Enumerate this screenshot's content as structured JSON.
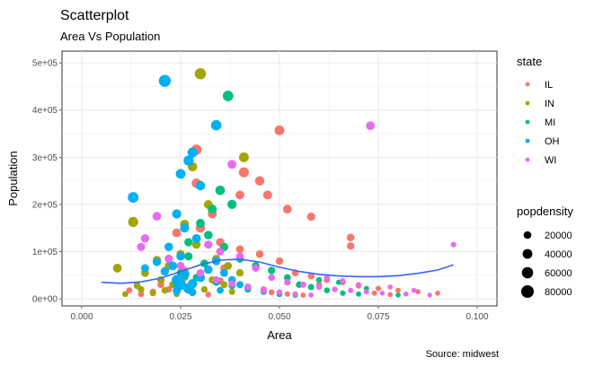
{
  "chart_data": {
    "type": "scatter",
    "title": "Scatterplot",
    "subtitle": "Area Vs Population",
    "xlabel": "Area",
    "ylabel": "Population",
    "caption": "Source: midwest",
    "xlim": [
      -0.005,
      0.105
    ],
    "ylim": [
      -15000,
      525000
    ],
    "xticks": [
      {
        "value": 0.0,
        "label": "0.000"
      },
      {
        "value": 0.025,
        "label": "0.025"
      },
      {
        "value": 0.05,
        "label": "0.050"
      },
      {
        "value": 0.075,
        "label": "0.075"
      },
      {
        "value": 0.1,
        "label": "0.100"
      }
    ],
    "yticks": [
      {
        "value": 0,
        "label": "0e+00"
      },
      {
        "value": 100000,
        "label": "1e+05"
      },
      {
        "value": 200000,
        "label": "2e+05"
      },
      {
        "value": 300000,
        "label": "3e+05"
      },
      {
        "value": 400000,
        "label": "4e+05"
      },
      {
        "value": 500000,
        "label": "5e+05"
      }
    ],
    "grid": true,
    "legend": {
      "placement": "right",
      "color_title": "state",
      "color_entries": [
        {
          "name": "IL",
          "color": "#F8766D"
        },
        {
          "name": "IN",
          "color": "#A3A500"
        },
        {
          "name": "MI",
          "color": "#00BF7D"
        },
        {
          "name": "OH",
          "color": "#00B0F6"
        },
        {
          "name": "WI",
          "color": "#E76BF3"
        }
      ],
      "size_title": "popdensity",
      "size_entries": [
        {
          "label": "20000",
          "value": 20000
        },
        {
          "label": "40000",
          "value": 40000
        },
        {
          "label": "60000",
          "value": 60000
        },
        {
          "label": "80000",
          "value": 80000
        }
      ]
    },
    "series": [
      {
        "name": "IL",
        "points": [
          [
            0.029,
            316000,
            48000
          ],
          [
            0.041,
            268000,
            44000
          ],
          [
            0.05,
            357000,
            40000
          ],
          [
            0.045,
            250000,
            36000
          ],
          [
            0.047,
            220000,
            32000
          ],
          [
            0.052,
            190000,
            30000
          ],
          [
            0.058,
            174000,
            24000
          ],
          [
            0.068,
            130000,
            20000
          ],
          [
            0.068,
            112000,
            18000
          ],
          [
            0.029,
            245000,
            38000
          ],
          [
            0.04,
            220000,
            30000
          ],
          [
            0.033,
            180000,
            32000
          ],
          [
            0.03,
            150000,
            34000
          ],
          [
            0.024,
            140000,
            30000
          ],
          [
            0.035,
            120000,
            26000
          ],
          [
            0.04,
            105000,
            22000
          ],
          [
            0.045,
            95000,
            20000
          ],
          [
            0.05,
            80000,
            18000
          ],
          [
            0.054,
            55000,
            14000
          ],
          [
            0.058,
            48000,
            12000
          ],
          [
            0.062,
            40000,
            10000
          ],
          [
            0.066,
            35000,
            8000
          ],
          [
            0.07,
            28000,
            8000
          ],
          [
            0.075,
            22000,
            6000
          ],
          [
            0.08,
            18000,
            5000
          ],
          [
            0.085,
            15000,
            5000
          ],
          [
            0.09,
            12000,
            4000
          ],
          [
            0.02,
            30000,
            14000
          ],
          [
            0.022,
            20000,
            12000
          ],
          [
            0.018,
            15000,
            10000
          ],
          [
            0.015,
            10000,
            8000
          ],
          [
            0.026,
            60000,
            20000
          ],
          [
            0.03,
            45000,
            18000
          ],
          [
            0.035,
            38000,
            16000
          ],
          [
            0.038,
            30000,
            14000
          ],
          [
            0.042,
            25000,
            12000
          ],
          [
            0.046,
            20000,
            10000
          ],
          [
            0.048,
            14000,
            8000
          ],
          [
            0.052,
            10000,
            6000
          ],
          [
            0.056,
            8000,
            5000
          ],
          [
            0.028,
            12000,
            9000
          ],
          [
            0.032,
            9000,
            8000
          ],
          [
            0.012,
            18000,
            9000
          ],
          [
            0.036,
            65000,
            20000
          ],
          [
            0.06,
            30000,
            8000
          ],
          [
            0.064,
            20000,
            6000
          ],
          [
            0.074,
            12000,
            5000
          ],
          [
            0.078,
            9000,
            4000
          ]
        ]
      },
      {
        "name": "IN",
        "points": [
          [
            0.03,
            477000,
            60000
          ],
          [
            0.013,
            163000,
            44000
          ],
          [
            0.009,
            65000,
            30000
          ],
          [
            0.041,
            300000,
            40000
          ],
          [
            0.028,
            280000,
            36000
          ],
          [
            0.032,
            200000,
            30000
          ],
          [
            0.026,
            158000,
            32000
          ],
          [
            0.019,
            82000,
            26000
          ],
          [
            0.016,
            55000,
            22000
          ],
          [
            0.022,
            70000,
            24000
          ],
          [
            0.025,
            95000,
            24000
          ],
          [
            0.029,
            115000,
            26000
          ],
          [
            0.034,
            85000,
            22000
          ],
          [
            0.037,
            70000,
            20000
          ],
          [
            0.04,
            55000,
            18000
          ],
          [
            0.02,
            40000,
            18000
          ],
          [
            0.023,
            30000,
            16000
          ],
          [
            0.027,
            25000,
            14000
          ],
          [
            0.031,
            20000,
            12000
          ],
          [
            0.015,
            20000,
            12000
          ],
          [
            0.018,
            12000,
            10000
          ],
          [
            0.011,
            10000,
            8000
          ],
          [
            0.033,
            40000,
            16000
          ],
          [
            0.036,
            30000,
            14000
          ],
          [
            0.024,
            10000,
            9000
          ],
          [
            0.038,
            15000,
            10000
          ],
          [
            0.021,
            18000,
            12000
          ],
          [
            0.026,
            45000,
            18000
          ],
          [
            0.014,
            28000,
            14000
          ],
          [
            0.042,
            22000,
            12000
          ]
        ]
      },
      {
        "name": "MI",
        "points": [
          [
            0.037,
            430000,
            50000
          ],
          [
            0.035,
            230000,
            38000
          ],
          [
            0.038,
            200000,
            34000
          ],
          [
            0.033,
            190000,
            32000
          ],
          [
            0.03,
            160000,
            30000
          ],
          [
            0.032,
            135000,
            28000
          ],
          [
            0.027,
            120000,
            26000
          ],
          [
            0.036,
            110000,
            26000
          ],
          [
            0.04,
            85000,
            22000
          ],
          [
            0.044,
            70000,
            20000
          ],
          [
            0.048,
            60000,
            18000
          ],
          [
            0.052,
            45000,
            14000
          ],
          [
            0.055,
            30000,
            12000
          ],
          [
            0.058,
            25000,
            10000
          ],
          [
            0.062,
            18000,
            8000
          ],
          [
            0.066,
            12000,
            6000
          ],
          [
            0.07,
            10000,
            5000
          ],
          [
            0.08,
            8000,
            4000
          ],
          [
            0.025,
            55000,
            20000
          ],
          [
            0.029,
            45000,
            18000
          ],
          [
            0.034,
            35000,
            16000
          ],
          [
            0.038,
            28000,
            14000
          ],
          [
            0.042,
            20000,
            12000
          ],
          [
            0.046,
            15000,
            10000
          ],
          [
            0.05,
            10000,
            8000
          ],
          [
            0.054,
            8000,
            6000
          ],
          [
            0.031,
            75000,
            22000
          ],
          [
            0.027,
            90000,
            24000
          ],
          [
            0.024,
            30000,
            16000
          ],
          [
            0.06,
            40000,
            8000
          ],
          [
            0.065,
            35000,
            6000
          ],
          [
            0.072,
            22000,
            5000
          ]
        ]
      },
      {
        "name": "OH",
        "points": [
          [
            0.021,
            462000,
            70000
          ],
          [
            0.034,
            368000,
            48000
          ],
          [
            0.013,
            215000,
            52000
          ],
          [
            0.027,
            293000,
            44000
          ],
          [
            0.025,
            265000,
            40000
          ],
          [
            0.028,
            310000,
            42000
          ],
          [
            0.03,
            240000,
            36000
          ],
          [
            0.024,
            180000,
            34000
          ],
          [
            0.026,
            150000,
            32000
          ],
          [
            0.029,
            128000,
            30000
          ],
          [
            0.022,
            110000,
            28000
          ],
          [
            0.025,
            90000,
            28000
          ],
          [
            0.023,
            70000,
            30000
          ],
          [
            0.026,
            52000,
            40000
          ],
          [
            0.024,
            40000,
            44000
          ],
          [
            0.025,
            30000,
            56000
          ],
          [
            0.027,
            22000,
            48000
          ],
          [
            0.028,
            32000,
            36000
          ],
          [
            0.03,
            45000,
            32000
          ],
          [
            0.032,
            62000,
            28000
          ],
          [
            0.034,
            80000,
            26000
          ],
          [
            0.036,
            55000,
            22000
          ],
          [
            0.038,
            40000,
            20000
          ],
          [
            0.04,
            30000,
            16000
          ],
          [
            0.042,
            25000,
            14000
          ],
          [
            0.021,
            58000,
            26000
          ],
          [
            0.019,
            78000,
            24000
          ],
          [
            0.016,
            65000,
            22000
          ],
          [
            0.028,
            14000,
            20000
          ],
          [
            0.035,
            18000,
            14000
          ],
          [
            0.024,
            17000,
            22000
          ]
        ]
      },
      {
        "name": "WI",
        "points": [
          [
            0.073,
            367000,
            30000
          ],
          [
            0.038,
            285000,
            30000
          ],
          [
            0.019,
            175000,
            28000
          ],
          [
            0.016,
            128000,
            26000
          ],
          [
            0.015,
            110000,
            24000
          ],
          [
            0.032,
            115000,
            24000
          ],
          [
            0.035,
            100000,
            22000
          ],
          [
            0.04,
            90000,
            20000
          ],
          [
            0.044,
            65000,
            18000
          ],
          [
            0.048,
            45000,
            14000
          ],
          [
            0.052,
            35000,
            12000
          ],
          [
            0.056,
            30000,
            10000
          ],
          [
            0.06,
            25000,
            8000
          ],
          [
            0.064,
            20000,
            6000
          ],
          [
            0.068,
            18000,
            5000
          ],
          [
            0.072,
            15000,
            5000
          ],
          [
            0.076,
            12000,
            4000
          ],
          [
            0.082,
            10000,
            4000
          ],
          [
            0.088,
            8000,
            3000
          ],
          [
            0.094,
            115000,
            6000
          ],
          [
            0.03,
            55000,
            20000
          ],
          [
            0.034,
            40000,
            16000
          ],
          [
            0.038,
            32000,
            14000
          ],
          [
            0.042,
            25000,
            12000
          ],
          [
            0.046,
            18000,
            10000
          ],
          [
            0.05,
            14000,
            8000
          ],
          [
            0.054,
            10000,
            6000
          ],
          [
            0.058,
            8000,
            5000
          ],
          [
            0.025,
            70000,
            22000
          ],
          [
            0.022,
            85000,
            24000
          ],
          [
            0.062,
            45000,
            8000
          ],
          [
            0.066,
            38000,
            6000
          ],
          [
            0.07,
            30000,
            5000
          ],
          [
            0.078,
            25000,
            4000
          ],
          [
            0.084,
            18000,
            4000
          ]
        ]
      }
    ],
    "trend": {
      "name": "smooth",
      "color": "#3366FF",
      "points": [
        [
          0.005,
          35000
        ],
        [
          0.01,
          33000
        ],
        [
          0.015,
          36000
        ],
        [
          0.02,
          44000
        ],
        [
          0.025,
          58000
        ],
        [
          0.03,
          72000
        ],
        [
          0.035,
          82000
        ],
        [
          0.04,
          84000
        ],
        [
          0.045,
          78000
        ],
        [
          0.05,
          67000
        ],
        [
          0.055,
          58000
        ],
        [
          0.06,
          52000
        ],
        [
          0.065,
          48500
        ],
        [
          0.07,
          47000
        ],
        [
          0.075,
          47000
        ],
        [
          0.08,
          49000
        ],
        [
          0.085,
          54000
        ],
        [
          0.09,
          61000
        ],
        [
          0.094,
          72000
        ]
      ]
    }
  }
}
